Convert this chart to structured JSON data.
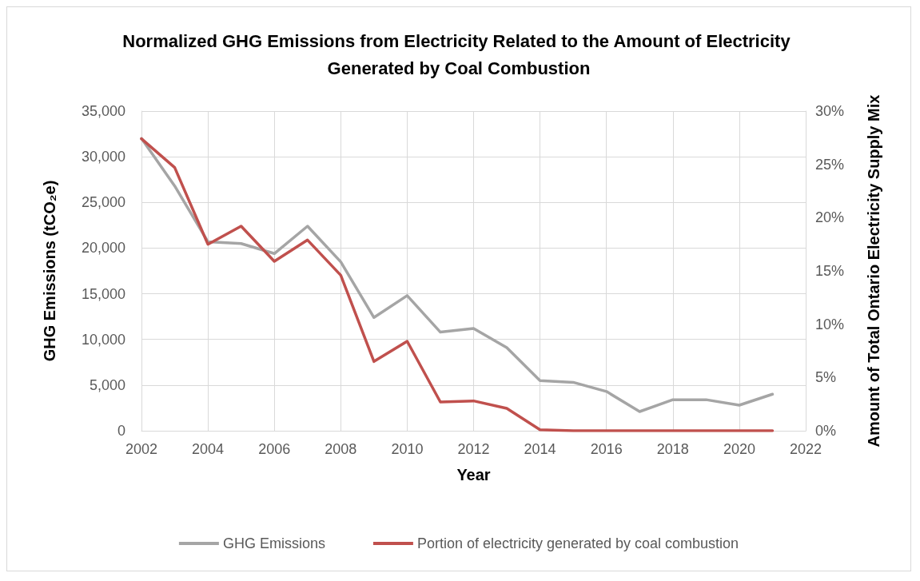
{
  "chart_data": {
    "type": "line",
    "title": "Normalized GHG Emissions from Electricity Related to the Amount of Electricity Generated by Coal Combustion",
    "xlabel": "Year",
    "ylabel": "GHG Emissions (tCO₂e)",
    "y2label": "Amount of Total Ontario Electricity Supply Mix",
    "x": [
      2002,
      2003,
      2004,
      2005,
      2006,
      2007,
      2008,
      2009,
      2010,
      2011,
      2012,
      2013,
      2014,
      2015,
      2016,
      2017,
      2018,
      2019,
      2020,
      2021
    ],
    "series": [
      {
        "name": "GHG Emissions",
        "color": "#a5a5a5",
        "values": [
          32000,
          26800,
          20700,
          20500,
          19400,
          22400,
          18500,
          12400,
          14800,
          10800,
          11200,
          9100,
          5500,
          5300,
          4300,
          2100,
          3400,
          3400,
          2800,
          4000
        ]
      },
      {
        "name": "Portion of electricity generated by coal combustion",
        "color": "#c0504d",
        "axis": "y2",
        "values": [
          27.4,
          24.7,
          17.5,
          19.2,
          15.9,
          17.9,
          14.6,
          6.5,
          8.4,
          2.7,
          2.8,
          2.1,
          0.1,
          0,
          0,
          0,
          0,
          0,
          0,
          0
        ]
      }
    ],
    "xlim": [
      2002,
      2022
    ],
    "xticks": [
      2002,
      2004,
      2006,
      2008,
      2010,
      2012,
      2014,
      2016,
      2018,
      2020,
      2022
    ],
    "ylim": [
      0,
      35000
    ],
    "yticks": [
      0,
      {
        "value": 5000,
        "label": "5,000"
      },
      {
        "value": 10000,
        "label": "10,000"
      },
      {
        "value": 15000,
        "label": "15,000"
      },
      {
        "value": 20000,
        "label": "20,000"
      },
      {
        "value": 25000,
        "label": "25,000"
      },
      {
        "value": 30000,
        "label": "30,000"
      },
      {
        "value": 35000,
        "label": "35,000"
      }
    ],
    "y2lim": [
      0,
      30
    ],
    "y2ticks": [
      {
        "value": 0,
        "label": "0%"
      },
      {
        "value": 5,
        "label": "5%"
      },
      {
        "value": 10,
        "label": "10%"
      },
      {
        "value": 15,
        "label": "15%"
      },
      {
        "value": 20,
        "label": "20%"
      },
      {
        "value": 25,
        "label": "25%"
      },
      {
        "value": 30,
        "label": "30%"
      }
    ],
    "grid": true,
    "legend": "bottom",
    "marker": "none",
    "line_style": "solid"
  }
}
